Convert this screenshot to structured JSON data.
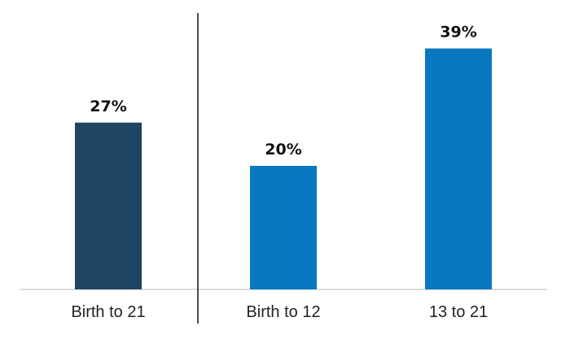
{
  "chart_data": {
    "type": "bar",
    "categories": [
      "Birth to 21",
      "Birth to 12",
      "13 to 21"
    ],
    "values": [
      27,
      20,
      39
    ],
    "value_labels": [
      "27%",
      "20%",
      "39%"
    ],
    "unit": "%",
    "colors": [
      "#1f4563",
      "#0a78c0",
      "#0a78c0"
    ],
    "divider_after_index": 0,
    "ylim": [
      0,
      40
    ],
    "grid": false,
    "legend": "none"
  }
}
